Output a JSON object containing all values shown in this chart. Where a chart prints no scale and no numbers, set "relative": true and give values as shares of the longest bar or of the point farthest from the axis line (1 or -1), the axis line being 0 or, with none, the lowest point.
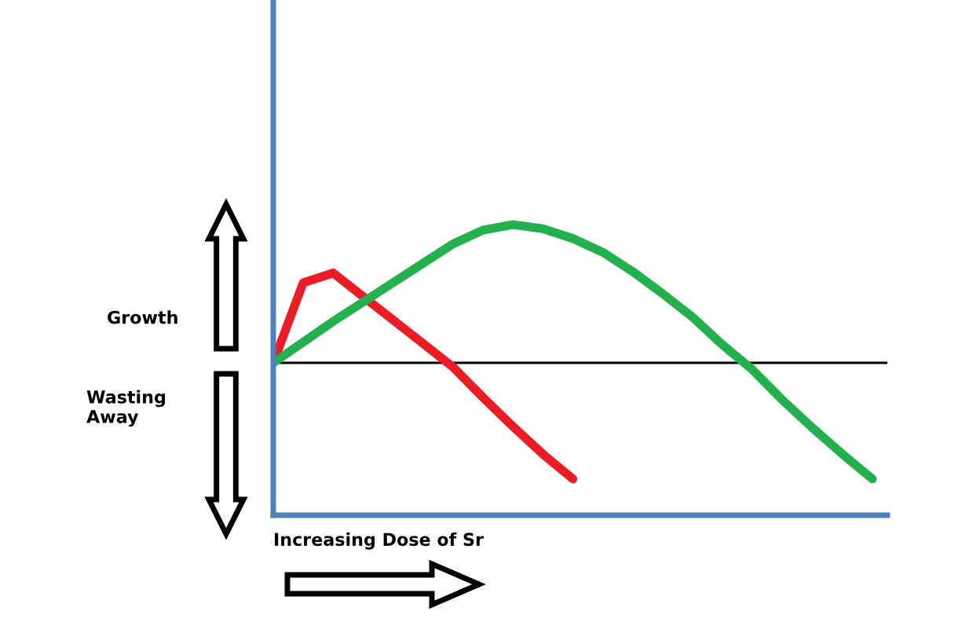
{
  "chart_data": {
    "type": "line",
    "relative": true,
    "xlabel": "Increasing Dose of Sr",
    "annotations": [
      "Growth",
      "Wasting Away"
    ],
    "categories": [
      null,
      null,
      null,
      null,
      null,
      null,
      null,
      null,
      null,
      null,
      null,
      null,
      null,
      null,
      null,
      null,
      null,
      null,
      null,
      null,
      null
    ],
    "series": [
      {
        "color": "#ed1c24",
        "values": [
          0,
          0.58,
          0.65,
          0.48,
          0.31,
          0.14,
          -0.03,
          -0.25,
          -0.46,
          -0.66,
          -0.84,
          null,
          null,
          null,
          null,
          null,
          null,
          null,
          null,
          null,
          null
        ]
      },
      {
        "color": "#22b14c",
        "values": [
          0,
          0.15,
          0.3,
          0.44,
          0.58,
          0.72,
          0.86,
          0.96,
          1.0,
          0.97,
          0.9,
          0.8,
          0.66,
          0.5,
          0.33,
          0.13,
          -0.05,
          -0.27,
          -0.47,
          -0.66,
          -0.84
        ]
      }
    ],
    "ref_lines": [
      {
        "axis": "y",
        "value": 0,
        "color": "#000000"
      }
    ],
    "grid": false,
    "legend": false,
    "marker": "none",
    "line_style": "solid"
  }
}
